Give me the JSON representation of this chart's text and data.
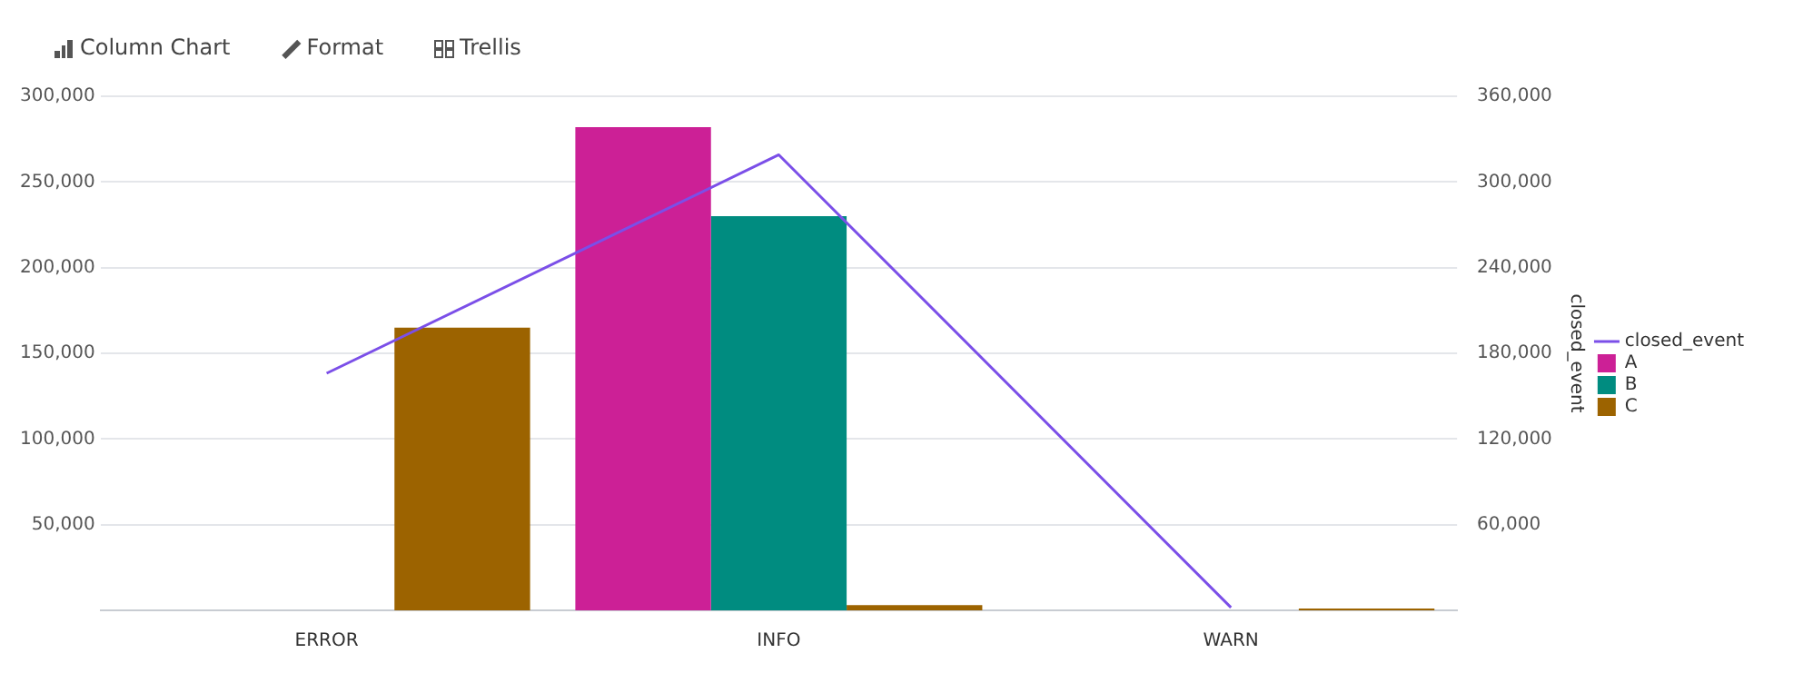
{
  "chart_data": {
    "type": "bar",
    "annotations": [
      "Column Chart",
      "Format",
      "Trellis"
    ],
    "categories": [
      "ERROR",
      "INFO",
      "WARN"
    ],
    "y2label": "closed_event",
    "series": [
      {
        "name": "closed_event",
        "type": "line",
        "axis": "y2",
        "color": "#7b4fe8",
        "values": [
          166000,
          319000,
          2000
        ]
      },
      {
        "name": "A",
        "color": "#cc2096",
        "values": [
          null,
          282000,
          null
        ]
      },
      {
        "name": "B",
        "color": "#008c80",
        "values": [
          null,
          230000,
          null
        ]
      },
      {
        "name": "C",
        "color": "#9c6300",
        "values": [
          165000,
          3000,
          1000
        ]
      }
    ],
    "ylim": [
      0,
      300000
    ],
    "yticks": [
      {
        "value": 50000,
        "label": "50,000"
      },
      {
        "value": 100000,
        "label": "100,000"
      },
      {
        "value": 150000,
        "label": "150,000"
      },
      {
        "value": 200000,
        "label": "200,000"
      },
      {
        "value": 250000,
        "label": "250,000"
      },
      {
        "value": 300000,
        "label": "300,000"
      }
    ],
    "y2lim": [
      0,
      360000
    ],
    "y2ticks": [
      {
        "value": 60000,
        "label": "60,000"
      },
      {
        "value": 120000,
        "label": "120,000"
      },
      {
        "value": 180000,
        "label": "180,000"
      },
      {
        "value": 240000,
        "label": "240,000"
      },
      {
        "value": 300000,
        "label": "300,000"
      },
      {
        "value": 360000,
        "label": "360,000"
      }
    ],
    "grid": "y",
    "legend": "right",
    "marker": "none"
  }
}
